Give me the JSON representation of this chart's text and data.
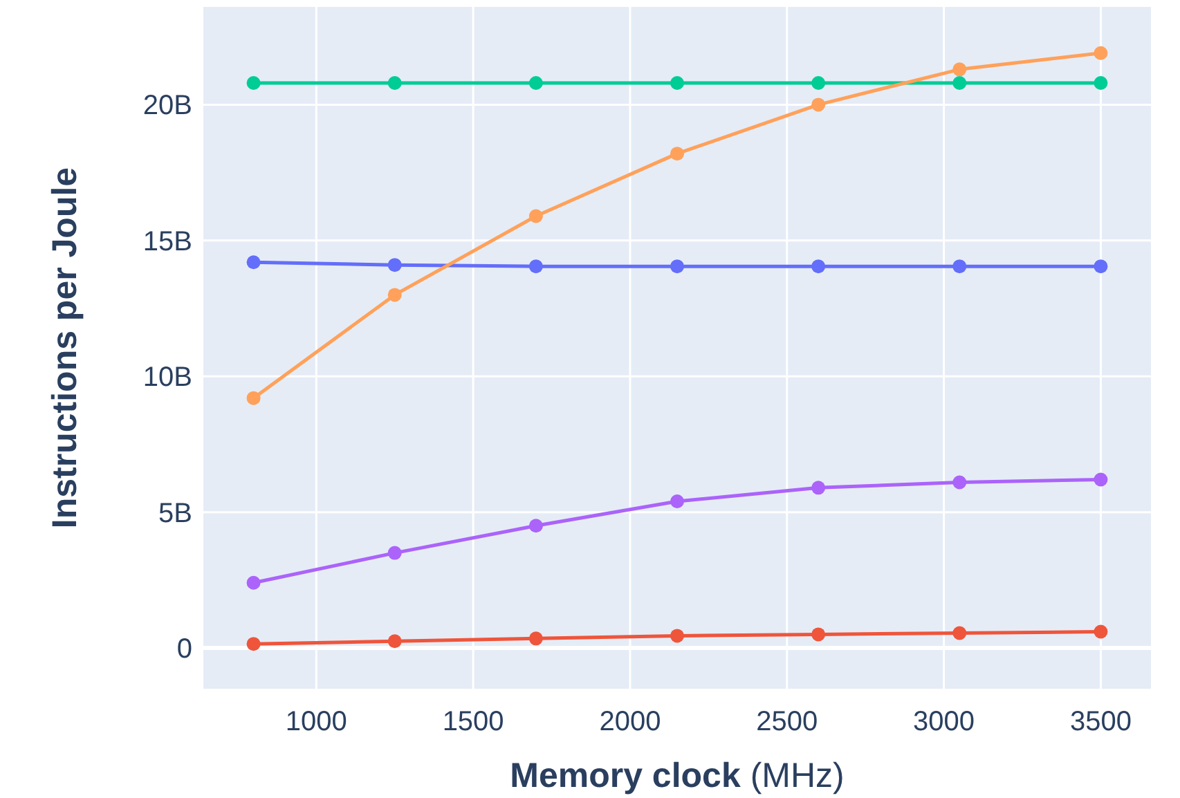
{
  "chart_data": {
    "type": "line",
    "xlabel": "Memory clock (MHz)",
    "ylabel": "Instructions per Joule",
    "x": [
      800,
      1250,
      1700,
      2150,
      2600,
      3050,
      3500
    ],
    "series": [
      {
        "color": "#636efa",
        "values": [
          14200000000,
          14100000000,
          14050000000,
          14050000000,
          14050000000,
          14050000000,
          14050000000
        ]
      },
      {
        "color": "#ef553b",
        "values": [
          150000000,
          250000000,
          350000000,
          450000000,
          500000000,
          550000000,
          600000000
        ]
      },
      {
        "color": "#00cc96",
        "values": [
          20800000000,
          20800000000,
          20800000000,
          20800000000,
          20800000000,
          20800000000,
          20800000000
        ]
      },
      {
        "color": "#ab63fa",
        "values": [
          2400000000,
          3500000000,
          4500000000,
          5400000000,
          5900000000,
          6100000000,
          6200000000
        ]
      },
      {
        "color": "#ffa15a",
        "values": [
          9200000000,
          13000000000,
          15900000000,
          18200000000,
          20000000000,
          21300000000,
          21900000000
        ]
      }
    ],
    "xlim": [
      640,
      3660
    ],
    "xticks": [
      1000,
      1500,
      2000,
      2500,
      3000,
      3500
    ],
    "ylim": [
      -1500000000,
      23600000000
    ],
    "yticks": [
      0,
      {
        "value": 5000000000,
        "label": "5B"
      },
      {
        "value": 10000000000,
        "label": "10B"
      },
      {
        "value": 15000000000,
        "label": "15B"
      },
      {
        "value": 20000000000,
        "label": "20B"
      }
    ],
    "grid": true,
    "marker": "circle",
    "line_style": "solid"
  }
}
